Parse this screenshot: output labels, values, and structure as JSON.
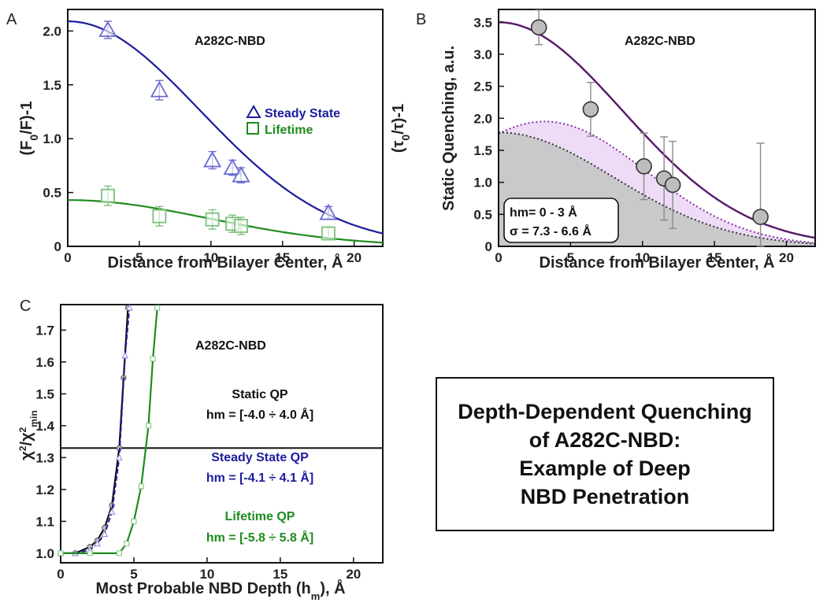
{
  "colors": {
    "blue": "#1c1c9c",
    "green": "#1e8c1e",
    "purple": "#8a2aa8",
    "black": "#111111",
    "grey": "#bdbdbd"
  },
  "summary_box": {
    "lines": [
      "Depth-Dependent Quenching",
      "of A282C-NBD:",
      "Example of Deep",
      "NBD Penetration"
    ]
  },
  "chart_data": [
    {
      "panel": "A",
      "type": "scatter",
      "title": "A282C-NBD",
      "xlabel": "Distance from Bilayer Center, Å",
      "ylabel_left": "(F0/F)-1",
      "ylabel_right": "(τ0/τ)-1",
      "xlim": [
        0,
        22
      ],
      "ylim": [
        0,
        2.2
      ],
      "xticks": [
        0,
        5,
        10,
        15,
        20
      ],
      "yticks": [
        "0",
        "0.5",
        "1.0",
        "1.5",
        "2.0"
      ],
      "legend": [
        "Steady State",
        "Lifetime"
      ],
      "series": [
        {
          "name": "Steady State",
          "marker": "triangle",
          "x": [
            2.8,
            6.4,
            10.1,
            11.5,
            12.1,
            18.2
          ],
          "y": [
            2.01,
            1.45,
            0.8,
            0.73,
            0.66,
            0.31
          ],
          "err": [
            0.08,
            0.09,
            0.08,
            0.07,
            0.07,
            0.06
          ]
        },
        {
          "name": "Lifetime",
          "marker": "square",
          "x": [
            2.8,
            6.4,
            10.1,
            11.5,
            12.1,
            18.2
          ],
          "y": [
            0.47,
            0.28,
            0.25,
            0.21,
            0.19,
            0.12
          ],
          "err": [
            0.09,
            0.09,
            0.09,
            0.08,
            0.08,
            0.06
          ]
        }
      ],
      "fits": [
        {
          "name": "Steady State fit",
          "amp": 2.09,
          "sigma": 9.2
        },
        {
          "name": "Lifetime fit",
          "amp": 0.43,
          "sigma": 9.8
        }
      ]
    },
    {
      "panel": "B",
      "type": "scatter",
      "title": "A282C-NBD",
      "xlabel": "Distance from Bilayer Center, Å",
      "ylabel": "Static Quenching, a.u.",
      "xlim": [
        0,
        22
      ],
      "ylim": [
        0,
        3.7
      ],
      "xticks": [
        0,
        5,
        10,
        15,
        20
      ],
      "yticks": [
        "0",
        "0.5",
        "1.0",
        "1.5",
        "2.0",
        "2.5",
        "3.0",
        "3.5"
      ],
      "annotation_lines": [
        "hm= 0 - 3 Å",
        "σ = 7.3 - 6.6 Å"
      ],
      "points": {
        "x": [
          2.8,
          6.4,
          10.1,
          11.5,
          12.1,
          18.2
        ],
        "y": [
          3.42,
          2.14,
          1.25,
          1.06,
          0.96,
          0.46
        ],
        "err": [
          0.27,
          0.42,
          0.52,
          0.65,
          0.68,
          1.15
        ]
      },
      "fits": [
        {
          "name": "total fit",
          "amp": 3.5,
          "sigma": 8.6
        },
        {
          "name": "deep component",
          "amp": 1.78,
          "sigma": 8.0,
          "center": 0
        },
        {
          "name": "shallow component",
          "amp": 1.95,
          "sigma": 7.0,
          "center": 3.2
        }
      ]
    },
    {
      "panel": "C",
      "type": "line",
      "xlabel": "Most Probable NBD Depth (hm), Å",
      "ylabel": "χ2/χ2min",
      "xlim": [
        0,
        22
      ],
      "ylim": [
        0.97,
        1.78
      ],
      "xticks": [
        0,
        5,
        10,
        15,
        20
      ],
      "yticks": [
        "1.0",
        "1.1",
        "1.2",
        "1.3",
        "1.4",
        "1.5",
        "1.6",
        "1.7"
      ],
      "threshold": 1.33,
      "title": "A282C-NBD",
      "annotations": [
        {
          "label": "Static QP",
          "range": "hm = [-4.0 ÷ 4.0 Å]"
        },
        {
          "label": "Steady State QP",
          "range": "hm = [-4.1 ÷ 4.1 Å]"
        },
        {
          "label": "Lifetime QP",
          "range": "hm = [-5.8 ÷ 5.8 Å]"
        }
      ],
      "series": [
        {
          "name": "Static QP",
          "x": [
            0,
            1,
            2,
            2.5,
            3,
            3.5,
            4,
            4.3,
            4.6
          ],
          "y": [
            1.0,
            1.0,
            1.02,
            1.04,
            1.08,
            1.15,
            1.33,
            1.55,
            1.77
          ]
        },
        {
          "name": "Steady State QP",
          "x": [
            0,
            1,
            2,
            2.5,
            3,
            3.5,
            4,
            4.4,
            4.7
          ],
          "y": [
            1.0,
            1.0,
            1.01,
            1.03,
            1.06,
            1.13,
            1.3,
            1.62,
            1.77
          ]
        },
        {
          "name": "Lifetime QP",
          "x": [
            0,
            2,
            4,
            4.5,
            5,
            5.5,
            6,
            6.3,
            6.6
          ],
          "y": [
            1.0,
            1.0,
            1.0,
            1.03,
            1.1,
            1.21,
            1.4,
            1.61,
            1.77
          ]
        }
      ]
    }
  ]
}
